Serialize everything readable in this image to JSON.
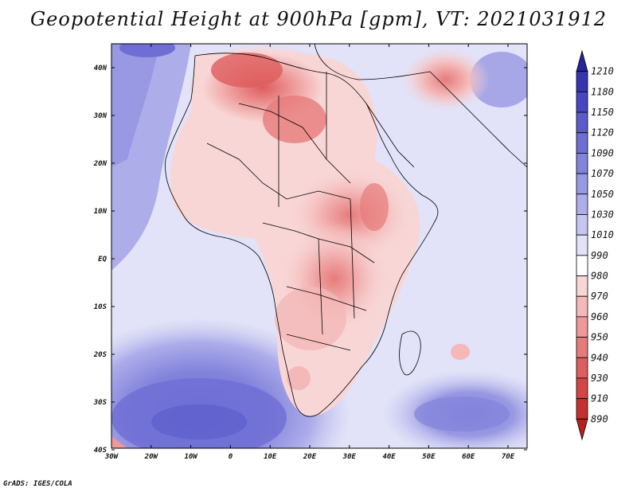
{
  "title": "Geopotential Height at 900hPa [gpm], VT: 2021031912",
  "credit": "GrADS: IGES/COLA",
  "map": {
    "region": "Africa",
    "variable": "Geopotential Height",
    "level": "900hPa",
    "units": "gpm",
    "valid_time": "2021031912",
    "lat_labels": [
      "40N",
      "30N",
      "20N",
      "10N",
      "EQ",
      "10S",
      "20S",
      "30S",
      "40S"
    ],
    "lon_labels": [
      "30W",
      "20W",
      "10W",
      "0",
      "10E",
      "20E",
      "30E",
      "40E",
      "50E",
      "60E",
      "70E"
    ]
  },
  "colorbar": {
    "levels": [
      "1210",
      "1180",
      "1150",
      "1120",
      "1090",
      "1070",
      "1050",
      "1030",
      "1010",
      "990",
      "980",
      "970",
      "960",
      "950",
      "940",
      "930",
      "910",
      "890"
    ],
    "colors": [
      "#26239a",
      "#3535b0",
      "#4747c2",
      "#5b5bcc",
      "#6e6ed4",
      "#8383dc",
      "#9898e3",
      "#adadea",
      "#c6c6f1",
      "#e2e2f8",
      "#ffffff",
      "#f8d6d6",
      "#f4b8b8",
      "#ee9898",
      "#e77b7b",
      "#de5d5d",
      "#d44646",
      "#c53030",
      "#b52020"
    ]
  }
}
